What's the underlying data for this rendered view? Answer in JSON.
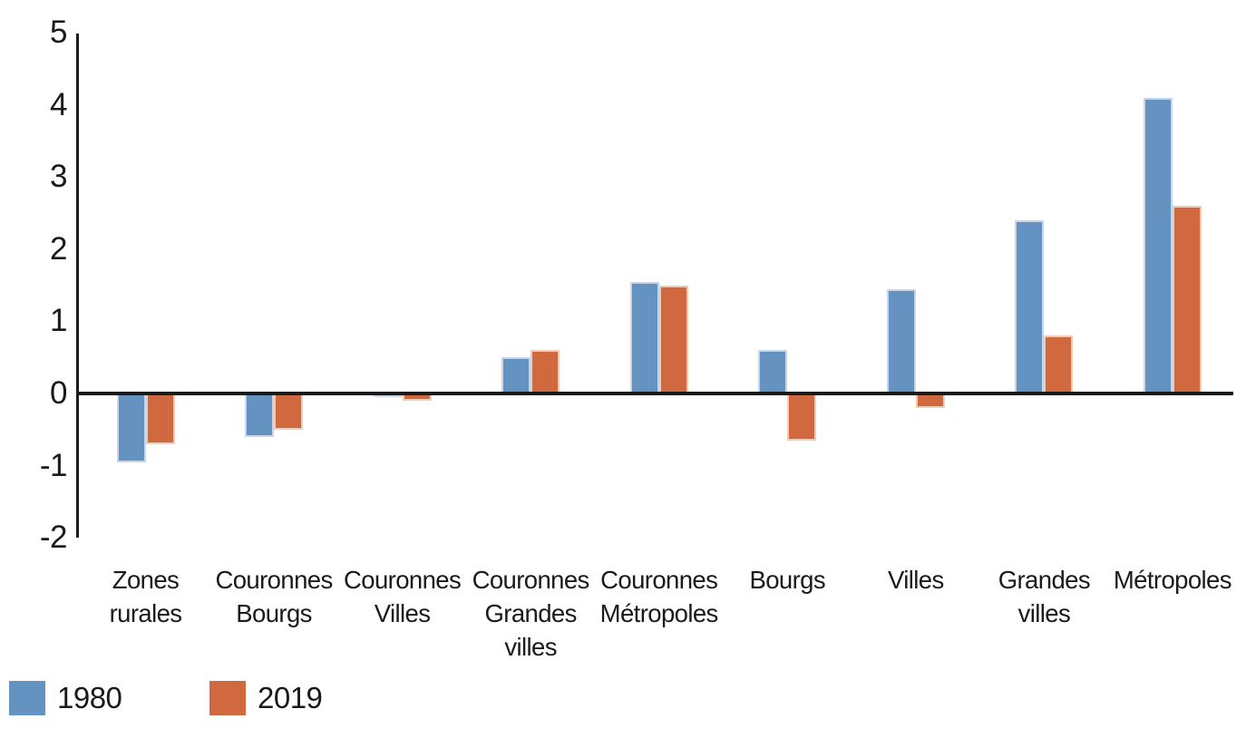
{
  "chart_data": {
    "type": "bar",
    "title": "",
    "xlabel": "",
    "ylabel": "",
    "grid": false,
    "legend_position": "bottom-left",
    "ylim": [
      -2,
      5
    ],
    "yticks": [
      5,
      4,
      3,
      2,
      1,
      0,
      -1,
      -2
    ],
    "categories": [
      "Zones rurales",
      "Couronnes Bourgs",
      "Couronnes Villes",
      "Couronnes Grandes villes",
      "Couronnes Métropoles",
      "Bourgs",
      "Villes",
      "Grandes villes",
      "Métropoles"
    ],
    "category_lines": [
      [
        "Zones",
        "rurales"
      ],
      [
        "Couronnes",
        "Bourgs"
      ],
      [
        "Couronnes",
        "Villes"
      ],
      [
        "Couronnes",
        "Grandes",
        "villes"
      ],
      [
        "Couronnes",
        "Métropoles"
      ],
      [
        "Bourgs"
      ],
      [
        "Villes"
      ],
      [
        "Grandes",
        "villes"
      ],
      [
        "Métropoles"
      ]
    ],
    "series": [
      {
        "name": "1980",
        "color": "#6492C1",
        "values": [
          -0.95,
          -0.6,
          -0.05,
          0.5,
          1.55,
          0.6,
          1.45,
          2.4,
          4.1
        ]
      },
      {
        "name": "2019",
        "color": "#D0693F",
        "values": [
          -0.7,
          -0.5,
          -0.1,
          0.6,
          1.5,
          -0.65,
          -0.2,
          0.8,
          2.6
        ]
      }
    ]
  },
  "legend": {
    "items": [
      {
        "label": "1980",
        "color": "#6492C1"
      },
      {
        "label": "2019",
        "color": "#D0693F"
      }
    ]
  },
  "colors": {
    "background": "#FFFFFF",
    "axis": "#1A1A1A",
    "text": "#1A1A1A",
    "series_1980": "#6492C1",
    "series_2019": "#D0693F",
    "bar_border_1980": "#C6D5E9",
    "bar_border_2019": "#F2CBB4"
  }
}
